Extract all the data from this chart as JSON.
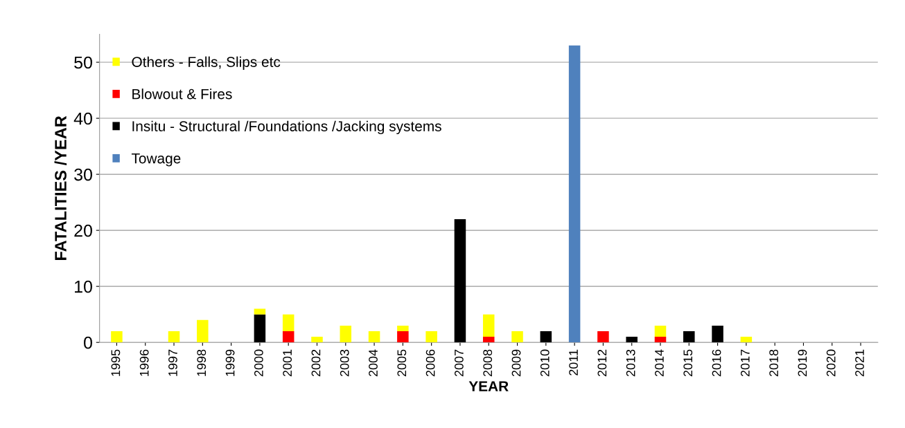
{
  "chart_data": {
    "type": "bar",
    "stacked": true,
    "xlabel": "YEAR",
    "ylabel": "FATALITIES /YEAR",
    "categories": [
      "1995",
      "1996",
      "1997",
      "1998",
      "1999",
      "2000",
      "2001",
      "2002",
      "2003",
      "2004",
      "2005",
      "2006",
      "2007",
      "2008",
      "2009",
      "2010",
      "2011",
      "2012",
      "2013",
      "2014",
      "2015",
      "2016",
      "2017",
      "2018",
      "2019",
      "2020",
      "2021"
    ],
    "series": [
      {
        "name": "Towage",
        "color": "#4f81bd",
        "values": [
          0,
          0,
          0,
          0,
          0,
          0,
          0,
          0,
          0,
          0,
          0,
          0,
          0,
          0,
          0,
          0,
          53,
          0,
          0,
          0,
          0,
          0,
          0,
          0,
          0,
          0,
          0
        ]
      },
      {
        "name": "Insitu - Structural /Foundations /Jacking systems",
        "color": "#000000",
        "values": [
          0,
          0,
          0,
          0,
          0,
          5,
          0,
          0,
          0,
          0,
          0,
          0,
          22,
          0,
          0,
          2,
          0,
          0,
          1,
          0,
          2,
          3,
          0,
          0,
          0,
          0,
          0
        ]
      },
      {
        "name": "Blowout & Fires",
        "color": "#ff0000",
        "values": [
          0,
          0,
          0,
          0,
          0,
          0,
          2,
          0,
          0,
          0,
          2,
          0,
          0,
          1,
          0,
          0,
          0,
          2,
          0,
          1,
          0,
          0,
          0,
          0,
          0,
          0,
          0
        ]
      },
      {
        "name": "Others - Falls, Slips etc",
        "color": "#ffff00",
        "values": [
          2,
          0,
          2,
          4,
          0,
          1,
          3,
          1,
          3,
          2,
          1,
          2,
          0,
          4,
          2,
          0,
          0,
          0,
          0,
          2,
          0,
          0,
          1,
          0,
          0,
          0,
          0
        ]
      }
    ],
    "ylim": [
      0,
      55
    ],
    "yticks": [
      0,
      10,
      20,
      30,
      40,
      50
    ],
    "grid": "y",
    "legend": "top left"
  }
}
